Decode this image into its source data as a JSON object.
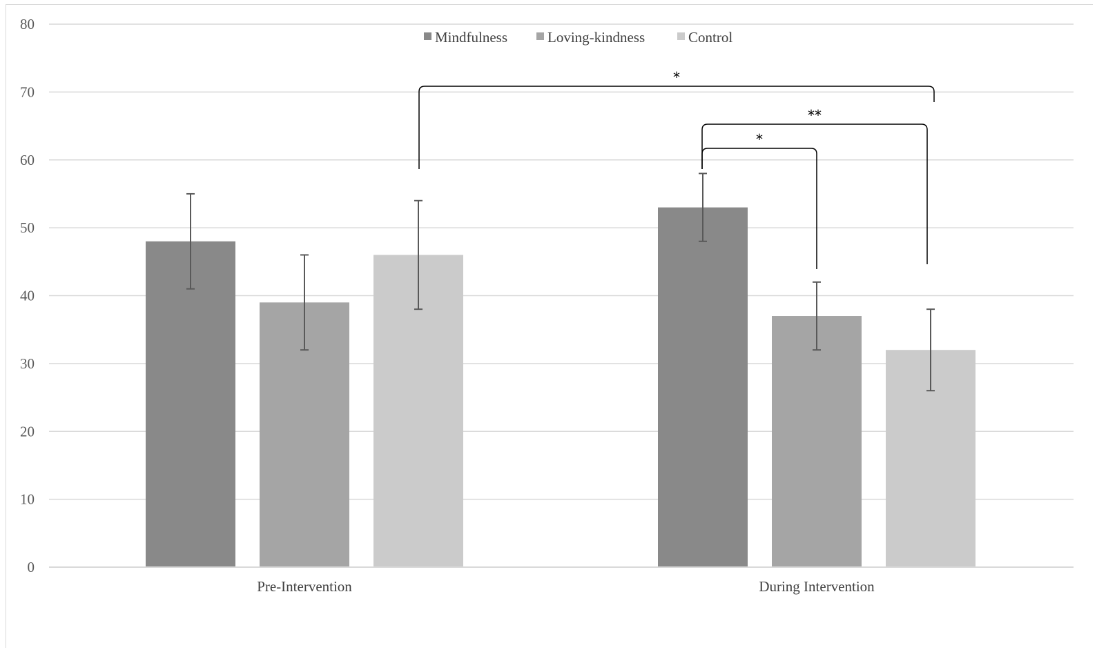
{
  "chart_data": {
    "type": "bar",
    "title": "",
    "xlabel": "",
    "ylabel": "",
    "categories": [
      "Pre-Intervention",
      "During Intervention"
    ],
    "series": [
      {
        "name": "Mindfulness",
        "color": "#898989",
        "values": [
          48,
          53
        ],
        "error_low": [
          41,
          48
        ],
        "error_high": [
          55,
          58
        ]
      },
      {
        "name": "Loving-kindness",
        "color": "#a5a5a5",
        "values": [
          39,
          37
        ],
        "error_low": [
          32,
          32
        ],
        "error_high": [
          46,
          42
        ]
      },
      {
        "name": "Control",
        "color": "#cbcbcb",
        "values": [
          46,
          32
        ],
        "error_low": [
          38,
          26
        ],
        "error_high": [
          54,
          38
        ]
      }
    ],
    "ylim": [
      0,
      80
    ],
    "yticks": [
      "0",
      "10",
      "20",
      "30",
      "40",
      "50",
      "60",
      "70",
      "80"
    ],
    "grid": true,
    "legend_position": "top-center",
    "significance": [
      {
        "label": "*",
        "from": {
          "category": 0,
          "series": 2
        },
        "to": {
          "category": 1,
          "series": 2
        }
      },
      {
        "label": "**",
        "from": {
          "category": 1,
          "series": 0
        },
        "to": {
          "category": 1,
          "series": 2
        }
      },
      {
        "label": "*",
        "from": {
          "category": 1,
          "series": 0
        },
        "to": {
          "category": 1,
          "series": 1
        }
      }
    ]
  }
}
